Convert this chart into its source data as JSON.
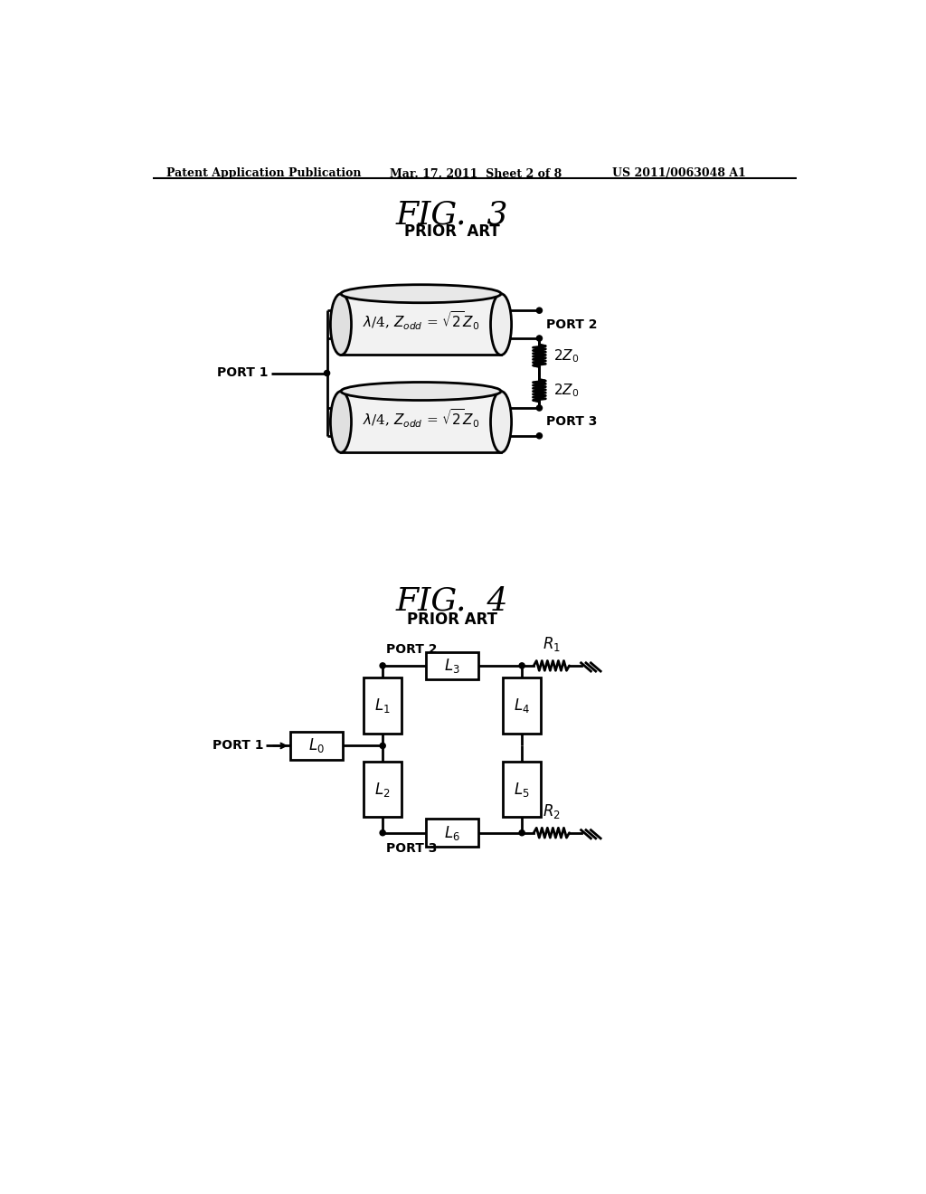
{
  "bg_color": "#ffffff",
  "header_left": "Patent Application Publication",
  "header_mid": "Mar. 17, 2011  Sheet 2 of 8",
  "header_right": "US 2011/0063048 A1",
  "fig3_title": "FIG.  3",
  "fig3_subtitle": "PRIOR  ART",
  "fig4_title": "FIG.  4",
  "fig4_subtitle": "PRIOR ART",
  "line_color": "#000000",
  "line_width": 2.0,
  "thin_line": 1.5
}
